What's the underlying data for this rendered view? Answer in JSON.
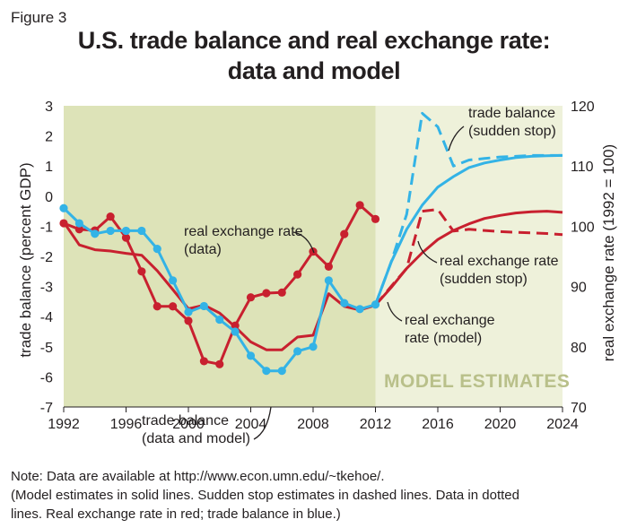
{
  "figure_label": "Figure 3",
  "title_line1": "U.S. trade balance and real exchange rate:",
  "title_line2": "data and model",
  "note_line1": "Note: Data are available at http://www.econ.umn.edu/~tkehoe/.",
  "note_line2": "(Model estimates in solid lines. Sudden stop estimates in dashed lines. Data in dotted",
  "note_line3": "lines. Real exchange rate in red; trade balance in blue.)",
  "colors": {
    "trade_balance": "#33b3e6",
    "real_exchange_rate": "#c8202f",
    "data_region": "#dde3b8",
    "model_region": "#eef1da",
    "model_label": "#b9c08a"
  },
  "chart_data": {
    "type": "line",
    "xlabel": "",
    "ylabel_left": "trade balance (percent GDP)",
    "ylabel_right": "real exchange rate (1992 = 100)",
    "xlim": [
      1992,
      2024
    ],
    "ylim_left": [
      -7,
      3
    ],
    "ylim_right": [
      70,
      120
    ],
    "x_ticks": [
      "1992",
      "1996",
      "2000",
      "2004",
      "2008",
      "2012",
      "2016",
      "2020",
      "2024"
    ],
    "y_ticks_left": [
      "3",
      "2",
      "1",
      "0",
      "-1",
      "-2",
      "-3",
      "-4",
      "-5",
      "-6",
      "-7"
    ],
    "y_ticks_right": [
      "120",
      "110",
      "100",
      "90",
      "80",
      "70"
    ],
    "regions": [
      {
        "from": 1992,
        "to": 2012
      },
      {
        "from": 2012,
        "to": 2024,
        "label": "MODEL ESTIMATES"
      }
    ],
    "series": [
      {
        "axis": "left",
        "style": "data",
        "x": [
          1992,
          1993,
          1994,
          1995,
          1996,
          1997,
          1998,
          1999,
          2000,
          2001,
          2002,
          2003,
          2004,
          2005,
          2006,
          2007,
          2008,
          2009,
          2010,
          2011,
          2012
        ],
        "y": [
          -0.4,
          -0.9,
          -1.25,
          -1.15,
          -1.15,
          -1.15,
          -1.75,
          -2.8,
          -3.85,
          -3.65,
          -4.1,
          -4.5,
          -5.3,
          -5.8,
          -5.8,
          -5.15,
          -5.0,
          -2.8,
          -3.55,
          -3.75,
          -3.6
        ]
      },
      {
        "axis": "left",
        "style": "model",
        "x": [
          2012,
          2013,
          2014,
          2015,
          2016,
          2017,
          2018,
          2019,
          2020,
          2021,
          2022,
          2023,
          2024
        ],
        "y": [
          -3.6,
          -2.2,
          -1.1,
          -0.3,
          0.3,
          0.65,
          0.95,
          1.1,
          1.2,
          1.28,
          1.32,
          1.34,
          1.35
        ]
      },
      {
        "axis": "left",
        "style": "sudden_stop",
        "x": [
          2012,
          2013,
          2014,
          2015,
          2016,
          2017,
          2018,
          2019,
          2020,
          2021,
          2022,
          2023,
          2024
        ],
        "y": [
          -3.6,
          -2.2,
          -0.6,
          2.75,
          2.3,
          1.0,
          1.2,
          1.25,
          1.3,
          1.32,
          1.35,
          1.35,
          1.35
        ]
      },
      {
        "axis": "right",
        "style": "data",
        "x": [
          1992,
          1993,
          1994,
          1995,
          1996,
          1997,
          1998,
          1999,
          2000,
          2001,
          2002,
          2003,
          2004,
          2005,
          2006,
          2007,
          2008,
          2009,
          2010,
          2011,
          2012
        ],
        "y": [
          100.5,
          99.5,
          99.3,
          101.6,
          98.1,
          92.5,
          86.7,
          86.7,
          84.3,
          77.6,
          77.1,
          83.5,
          88.2,
          88.9,
          89.0,
          92.0,
          95.8,
          93.3,
          98.7,
          103.5,
          101.2
        ]
      },
      {
        "axis": "right",
        "style": "model",
        "x": [
          1992,
          1993,
          1994,
          1995,
          1996,
          1997,
          1998,
          1999,
          2000,
          2001,
          2002,
          2003,
          2004,
          2005,
          2006,
          2007,
          2008,
          2009,
          2010,
          2011,
          2012,
          2013,
          2014,
          2015,
          2016,
          2017,
          2018,
          2019,
          2020,
          2021,
          2022,
          2023,
          2024
        ],
        "y": [
          100.7,
          96.9,
          96.1,
          95.9,
          95.5,
          95.2,
          92.6,
          89.5,
          86.3,
          86.9,
          85.6,
          83.3,
          80.8,
          79.5,
          79.5,
          81.6,
          81.9,
          88.8,
          86.7,
          86.1,
          86.9,
          89.8,
          93.0,
          95.6,
          97.8,
          99.3,
          100.4,
          101.3,
          101.8,
          102.2,
          102.4,
          102.5,
          102.3
        ]
      },
      {
        "axis": "right",
        "style": "sudden_stop",
        "x": [
          2012,
          2013,
          2014,
          2015,
          2016,
          2017,
          2018,
          2019,
          2020,
          2021,
          2022,
          2023,
          2024
        ],
        "y": [
          86.9,
          90.0,
          93.0,
          102.5,
          102.8,
          99.2,
          99.5,
          99.3,
          99.1,
          99.0,
          98.9,
          98.8,
          98.6
        ]
      }
    ],
    "annotations": {
      "rer_data": [
        "real exchange rate",
        "(data)"
      ],
      "tb_data": [
        "trade balance",
        "(data and model)"
      ],
      "tb_sudden": [
        "trade balance",
        "(sudden stop)"
      ],
      "rer_sudden": [
        "real exchange rate",
        "(sudden stop)"
      ],
      "rer_model": [
        "real exchange",
        "rate (model)"
      ],
      "model_estimates": "MODEL ESTIMATES"
    }
  }
}
